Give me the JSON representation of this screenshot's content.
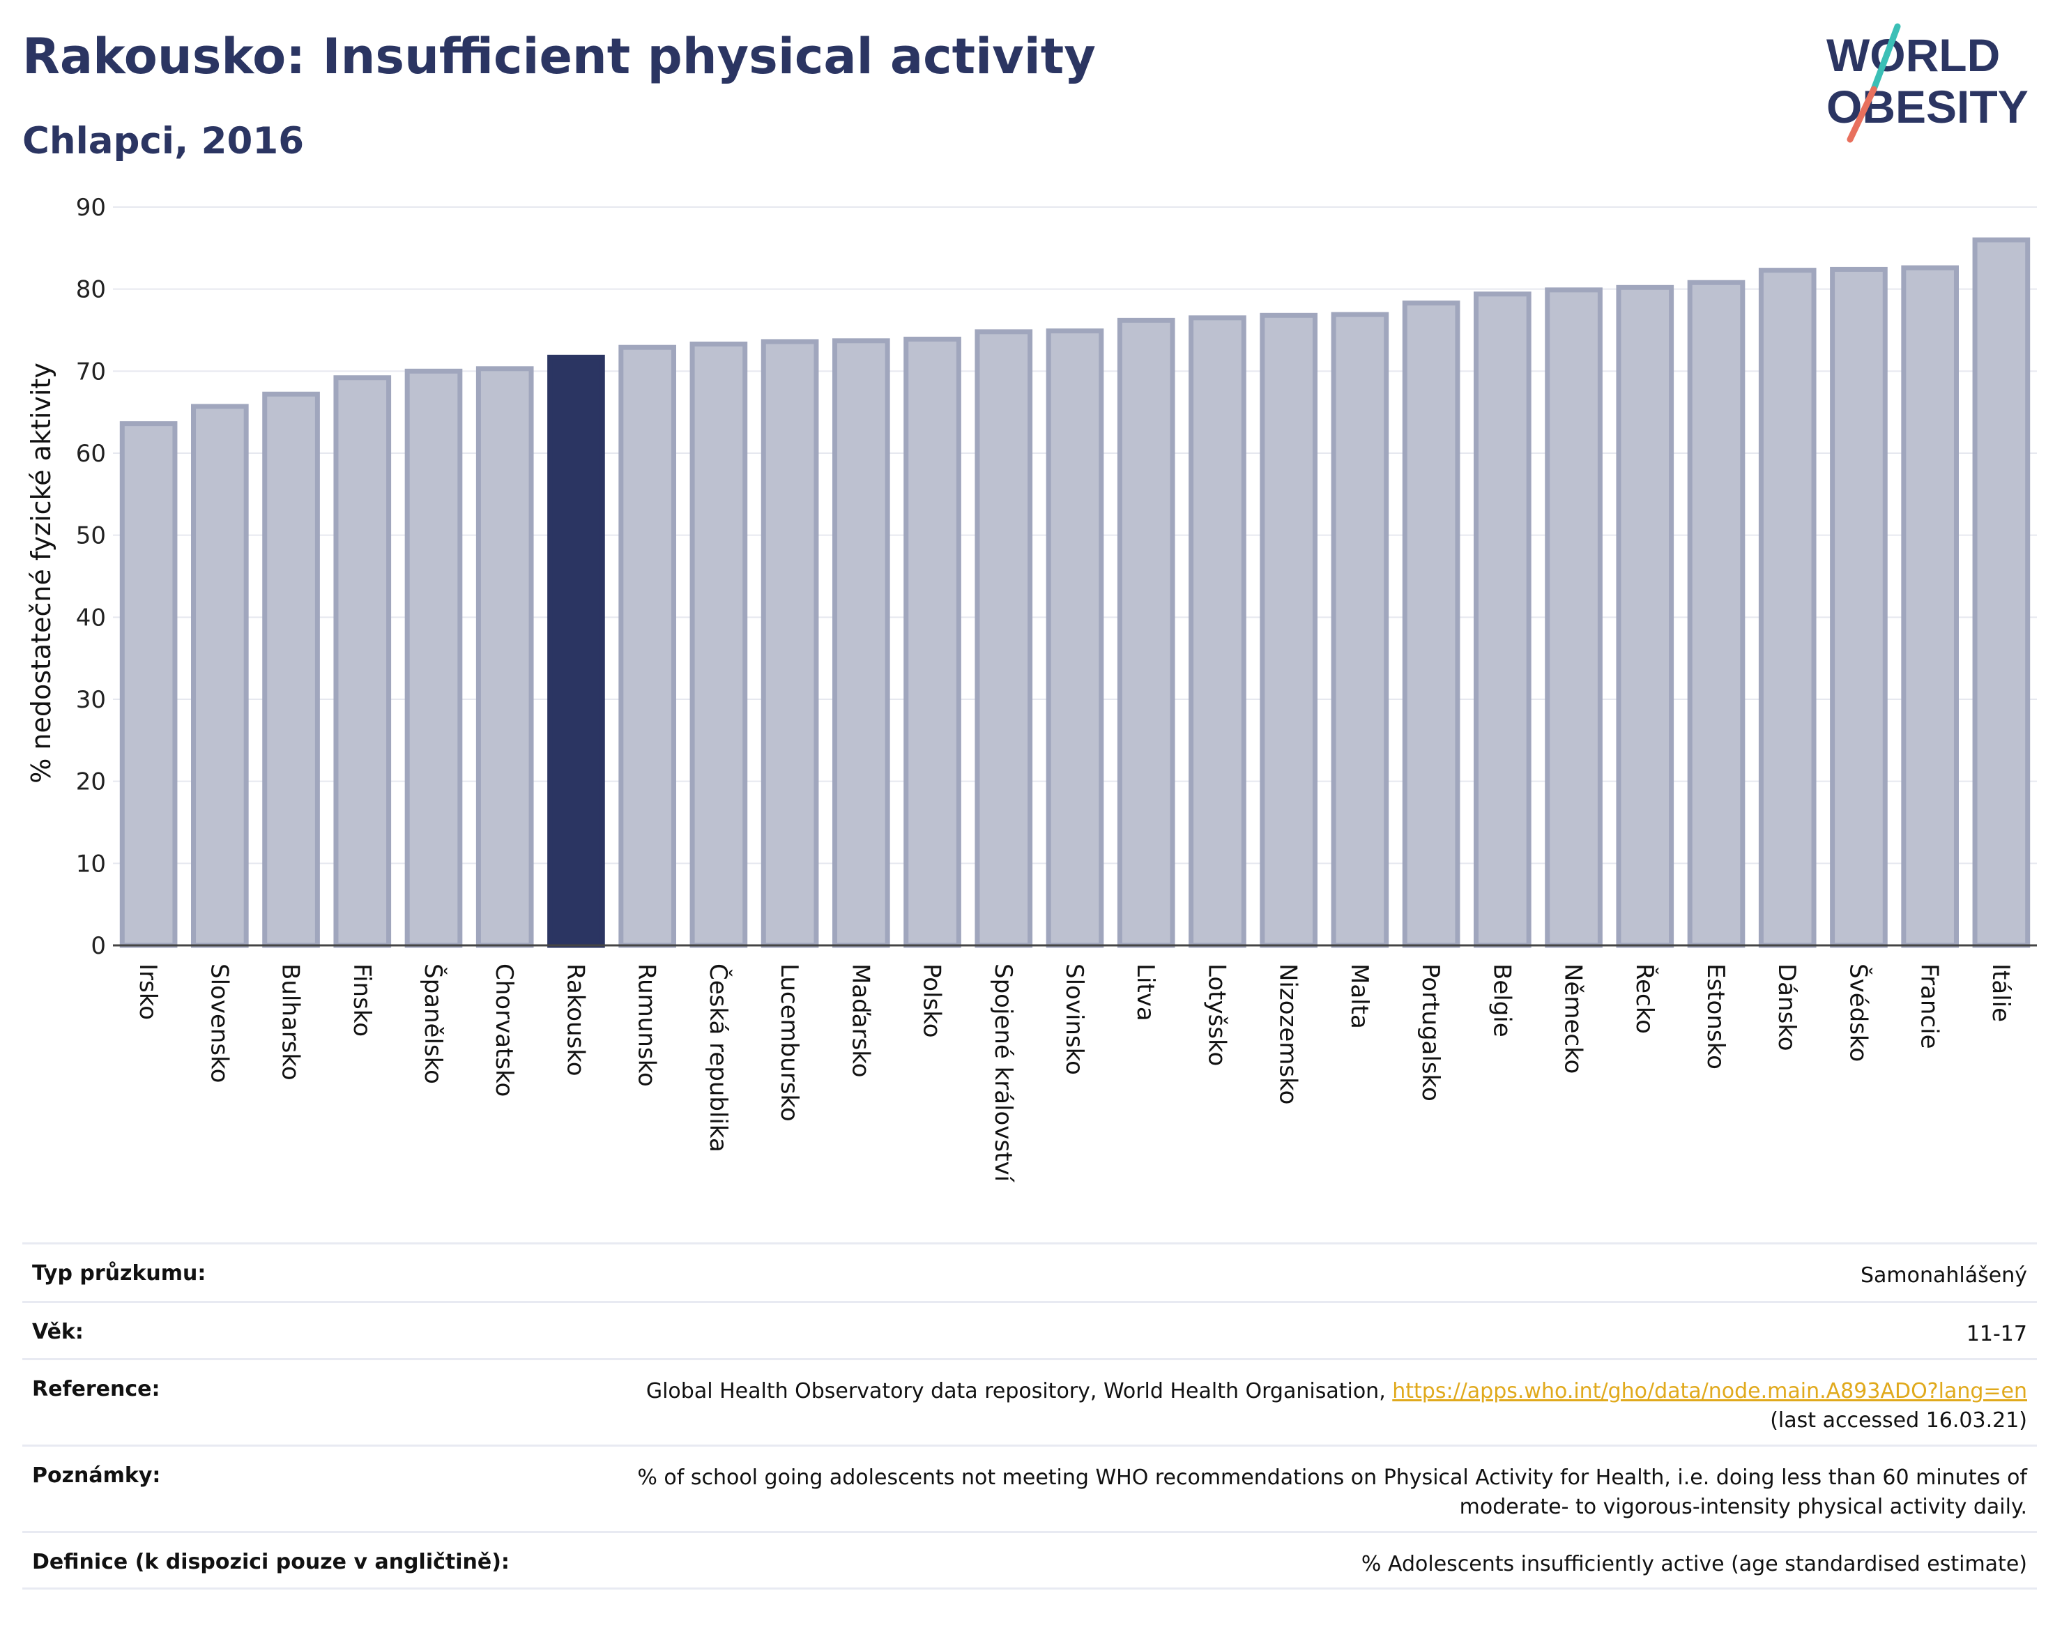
{
  "header": {
    "title": "Rakousko: Insufficient physical activity",
    "subtitle": "Chlapci, 2016"
  },
  "logo": {
    "line1": "WORLD",
    "line2": "OBESITY",
    "colors": {
      "text": "#2b3562",
      "slash_teal": "#3bbfb6",
      "slash_coral": "#e8705d"
    }
  },
  "colors": {
    "bar_fill": "#bdc1d0",
    "bar_stroke": "#a0a6bd",
    "highlight_fill": "#2b3562",
    "grid": "#e6e8ef",
    "axis": "#444444"
  },
  "chart_data": {
    "type": "bar",
    "title": "Rakousko: Insufficient physical activity",
    "subtitle": "Chlapci, 2016",
    "ylabel": "% nedostatečné fyzické aktivity",
    "xlabel": "",
    "ylim": [
      0,
      90
    ],
    "yticks": [
      0,
      10,
      20,
      30,
      40,
      50,
      60,
      70,
      80,
      90
    ],
    "grid": true,
    "highlight": "Rakousko",
    "categories": [
      "Irsko",
      "Slovensko",
      "Bulharsko",
      "Finsko",
      "Španělsko",
      "Chorvatsko",
      "Rakousko",
      "Rumunsko",
      "Česká republika",
      "Lucembursko",
      "Maďarsko",
      "Polsko",
      "Spojené království",
      "Slovinsko",
      "Litva",
      "Lotyšsko",
      "Nizozemsko",
      "Malta",
      "Portugalsko",
      "Belgie",
      "Německo",
      "Řecko",
      "Estonsko",
      "Dánsko",
      "Švédsko",
      "Francie",
      "Itálie"
    ],
    "values": [
      63.6,
      65.7,
      67.2,
      69.2,
      70.0,
      70.3,
      71.7,
      72.9,
      73.3,
      73.6,
      73.7,
      73.9,
      74.8,
      74.9,
      76.2,
      76.5,
      76.8,
      76.9,
      78.3,
      79.4,
      79.9,
      80.2,
      80.8,
      82.3,
      82.4,
      82.6,
      86.0
    ]
  },
  "meta": [
    {
      "key": "Typ průzkumu:",
      "value": "Samonahlášený"
    },
    {
      "key": "Věk:",
      "value": "11-17"
    },
    {
      "key": "Reference:",
      "value": "Global Health Observatory data repository, World Health Organisation, ",
      "link": "https://apps.who.int/gho/data/node.main.A893ADO?lang=en",
      "value2": "(last accessed 16.03.21)"
    },
    {
      "key": "Poznámky:",
      "value": "% of school going adolescents not meeting WHO recommendations on Physical Activity for Health, i.e. doing less than 60 minutes of",
      "value2": "moderate- to vigorous-intensity physical activity daily."
    },
    {
      "key": "Definice (k dispozici pouze v angličtině):",
      "value": "% Adolescents insufficiently active (age standardised estimate)"
    }
  ]
}
